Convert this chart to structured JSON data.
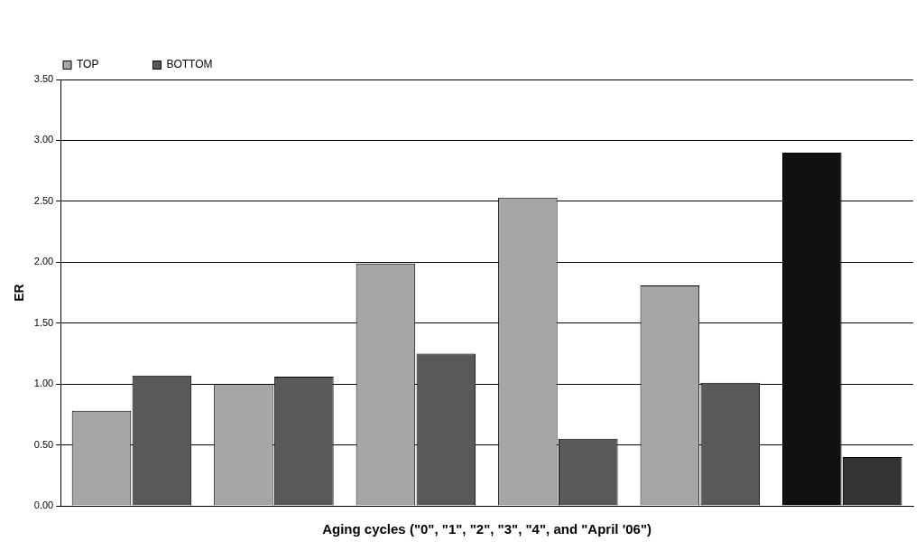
{
  "chart_data": {
    "type": "bar",
    "xlabel": "Aging cycles (\"0\", \"1\", \"2\", \"3\", \"4\", and \"April '06\")",
    "ylabel": "ER",
    "categories": [
      null,
      null,
      null,
      null,
      null,
      null
    ],
    "series": [
      {
        "name": "TOP",
        "color": "#a6a6a6",
        "colors": [
          "#a6a6a6",
          "#a6a6a6",
          "#a6a6a6",
          "#a6a6a6",
          "#a6a6a6",
          "#111111"
        ],
        "values": [
          0.78,
          1.0,
          1.99,
          2.53,
          1.81,
          2.9
        ]
      },
      {
        "name": "BOTTOM",
        "color": "#595959",
        "colors": [
          "#595959",
          "#595959",
          "#595959",
          "#595959",
          "#595959",
          "#333333"
        ],
        "values": [
          1.07,
          1.06,
          1.25,
          0.55,
          1.01,
          0.4
        ]
      }
    ],
    "ylim": [
      0,
      3.5
    ],
    "yticks": [
      {
        "value": 0,
        "label": "0.00"
      },
      {
        "value": 0.5,
        "label": "0.50"
      },
      {
        "value": 1,
        "label": "1.00"
      },
      {
        "value": 1.5,
        "label": "1.50"
      },
      {
        "value": 2,
        "label": "2.00"
      },
      {
        "value": 2.5,
        "label": "2.50"
      },
      {
        "value": 3,
        "label": "3.00"
      },
      {
        "value": 3.5,
        "label": "3.50"
      }
    ],
    "grid": "y",
    "legend": "top",
    "tick_labels": "y"
  }
}
